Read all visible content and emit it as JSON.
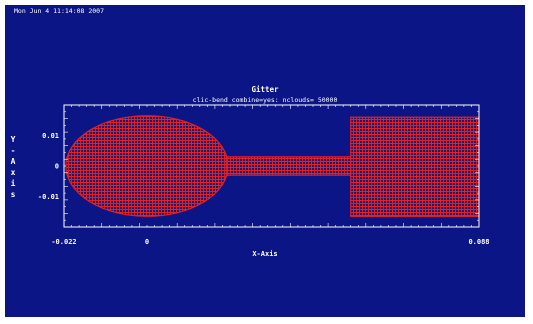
{
  "timestamp": "Mon Jun  4 11:14:08 2007",
  "chart_data": {
    "type": "scatter",
    "title": "Gitter",
    "subtitle": "clic-bend combine=yes: nclouds= 50000",
    "xlabel": "X-Axis",
    "ylabel": "Y-Axis",
    "xlim": [
      -0.022,
      0.088
    ],
    "ylim": [
      -0.02,
      0.02
    ],
    "x_ticks": [
      {
        "value": -0.022,
        "label": "-0.022"
      },
      {
        "value": 0,
        "label": "0"
      },
      {
        "value": 0.088,
        "label": "0.088"
      }
    ],
    "y_ticks": [
      {
        "value": 0.01,
        "label": "0.01"
      },
      {
        "value": 0,
        "label": "0"
      },
      {
        "value": -0.01,
        "label": "-0.01"
      }
    ],
    "grid_color": "#e0212b",
    "background": "#0c1585",
    "shapes": [
      {
        "kind": "ellipse",
        "cx": 0,
        "cy": 0,
        "rx": 0.0215,
        "ry": 0.0165
      },
      {
        "kind": "rect",
        "x0": 0.021,
        "x1": 0.054,
        "y0": -0.003,
        "y1": 0.003
      },
      {
        "kind": "rect",
        "x0": 0.054,
        "x1": 0.088,
        "y0": -0.0165,
        "y1": 0.016
      }
    ]
  }
}
